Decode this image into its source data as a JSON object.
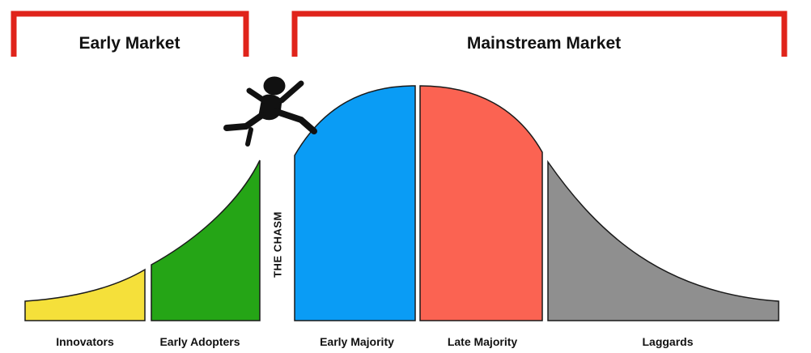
{
  "markets": {
    "early": {
      "title": "Early Market"
    },
    "mainstream": {
      "title": "Mainstream Market"
    }
  },
  "chasm": {
    "label": "THE CHASM"
  },
  "segments": [
    {
      "label": "Innovators",
      "color": "#f5e03a"
    },
    {
      "label": "Early Adopters",
      "color": "#25a516"
    },
    {
      "label": "Early Majority",
      "color": "#0a9cf5"
    },
    {
      "label": "Late Majority",
      "color": "#fb6352"
    },
    {
      "label": "Laggards",
      "color": "#8f8f8f"
    }
  ],
  "colors": {
    "bracket": "#e0241b",
    "outline": "#1a1a1a",
    "jumper": "#111111"
  },
  "icons": {
    "jumper": "person-leaping-icon"
  }
}
